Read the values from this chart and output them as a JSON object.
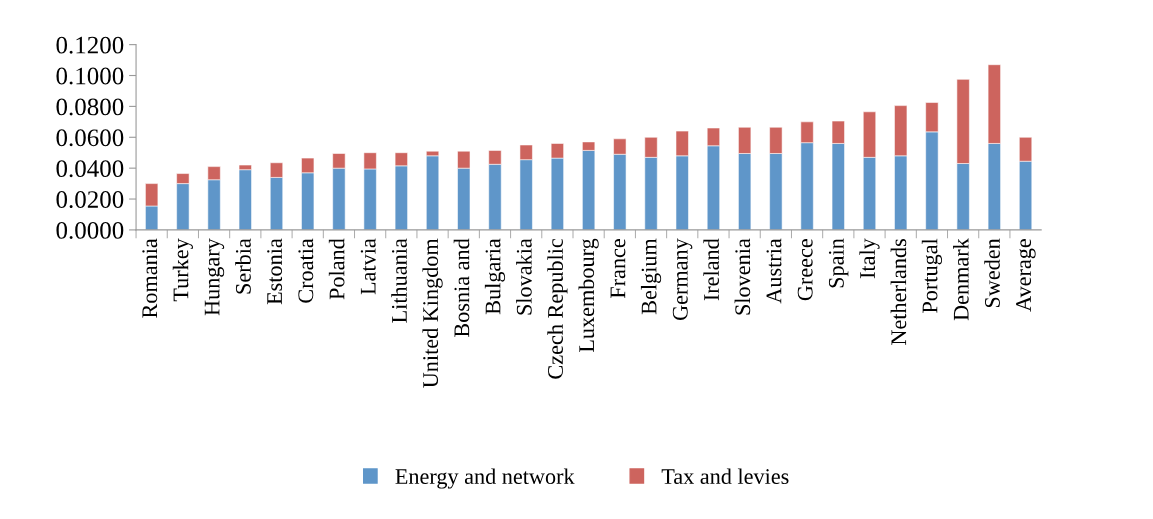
{
  "chart_data": {
    "type": "bar",
    "stacked": true,
    "categories": [
      "Romania",
      "Turkey",
      "Hungary",
      "Serbia",
      "Estonia",
      "Croatia",
      "Poland",
      "Latvia",
      "Lithuania",
      "United Kingdom",
      "Bosnia and",
      "Bulgaria",
      "Slovakia",
      "Czech Republic",
      "Luxembourg",
      "France",
      "Belgium",
      "Germany",
      "Ireland",
      "Slovenia",
      "Austria",
      "Greece",
      "Spain",
      "Italy",
      "Netherlands",
      "Portugal",
      "Denmark",
      "Sweden",
      "Average"
    ],
    "series": [
      {
        "name": "Energy and network",
        "color": "#5f96c9",
        "values": [
          0.0155,
          0.03,
          0.0325,
          0.039,
          0.034,
          0.037,
          0.04,
          0.0395,
          0.0415,
          0.048,
          0.04,
          0.0425,
          0.0455,
          0.0465,
          0.0515,
          0.049,
          0.047,
          0.048,
          0.0545,
          0.0495,
          0.0495,
          0.0565,
          0.056,
          0.047,
          0.048,
          0.0635,
          0.043,
          0.056,
          0.0445
        ]
      },
      {
        "name": "Tax and levies",
        "color": "#cd645e",
        "values": [
          0.0145,
          0.0065,
          0.0085,
          0.003,
          0.0095,
          0.0095,
          0.0095,
          0.0105,
          0.0085,
          0.003,
          0.011,
          0.009,
          0.0095,
          0.0095,
          0.0055,
          0.01,
          0.013,
          0.016,
          0.0115,
          0.017,
          0.017,
          0.0135,
          0.0145,
          0.0295,
          0.0325,
          0.019,
          0.0545,
          0.051,
          0.0155
        ]
      }
    ],
    "ylim": [
      0,
      0.12
    ],
    "yticks": [
      {
        "value": 0,
        "label": "0.0000"
      },
      {
        "value": 0.02,
        "label": "0.0200"
      },
      {
        "value": 0.04,
        "label": "0.0400"
      },
      {
        "value": 0.06,
        "label": "0.0600"
      },
      {
        "value": 0.08,
        "label": "0.0800"
      },
      {
        "value": 0.1,
        "label": "0.1000"
      },
      {
        "value": 0.12,
        "label": "0.1200"
      }
    ],
    "grid": false,
    "legend": "bottom"
  }
}
